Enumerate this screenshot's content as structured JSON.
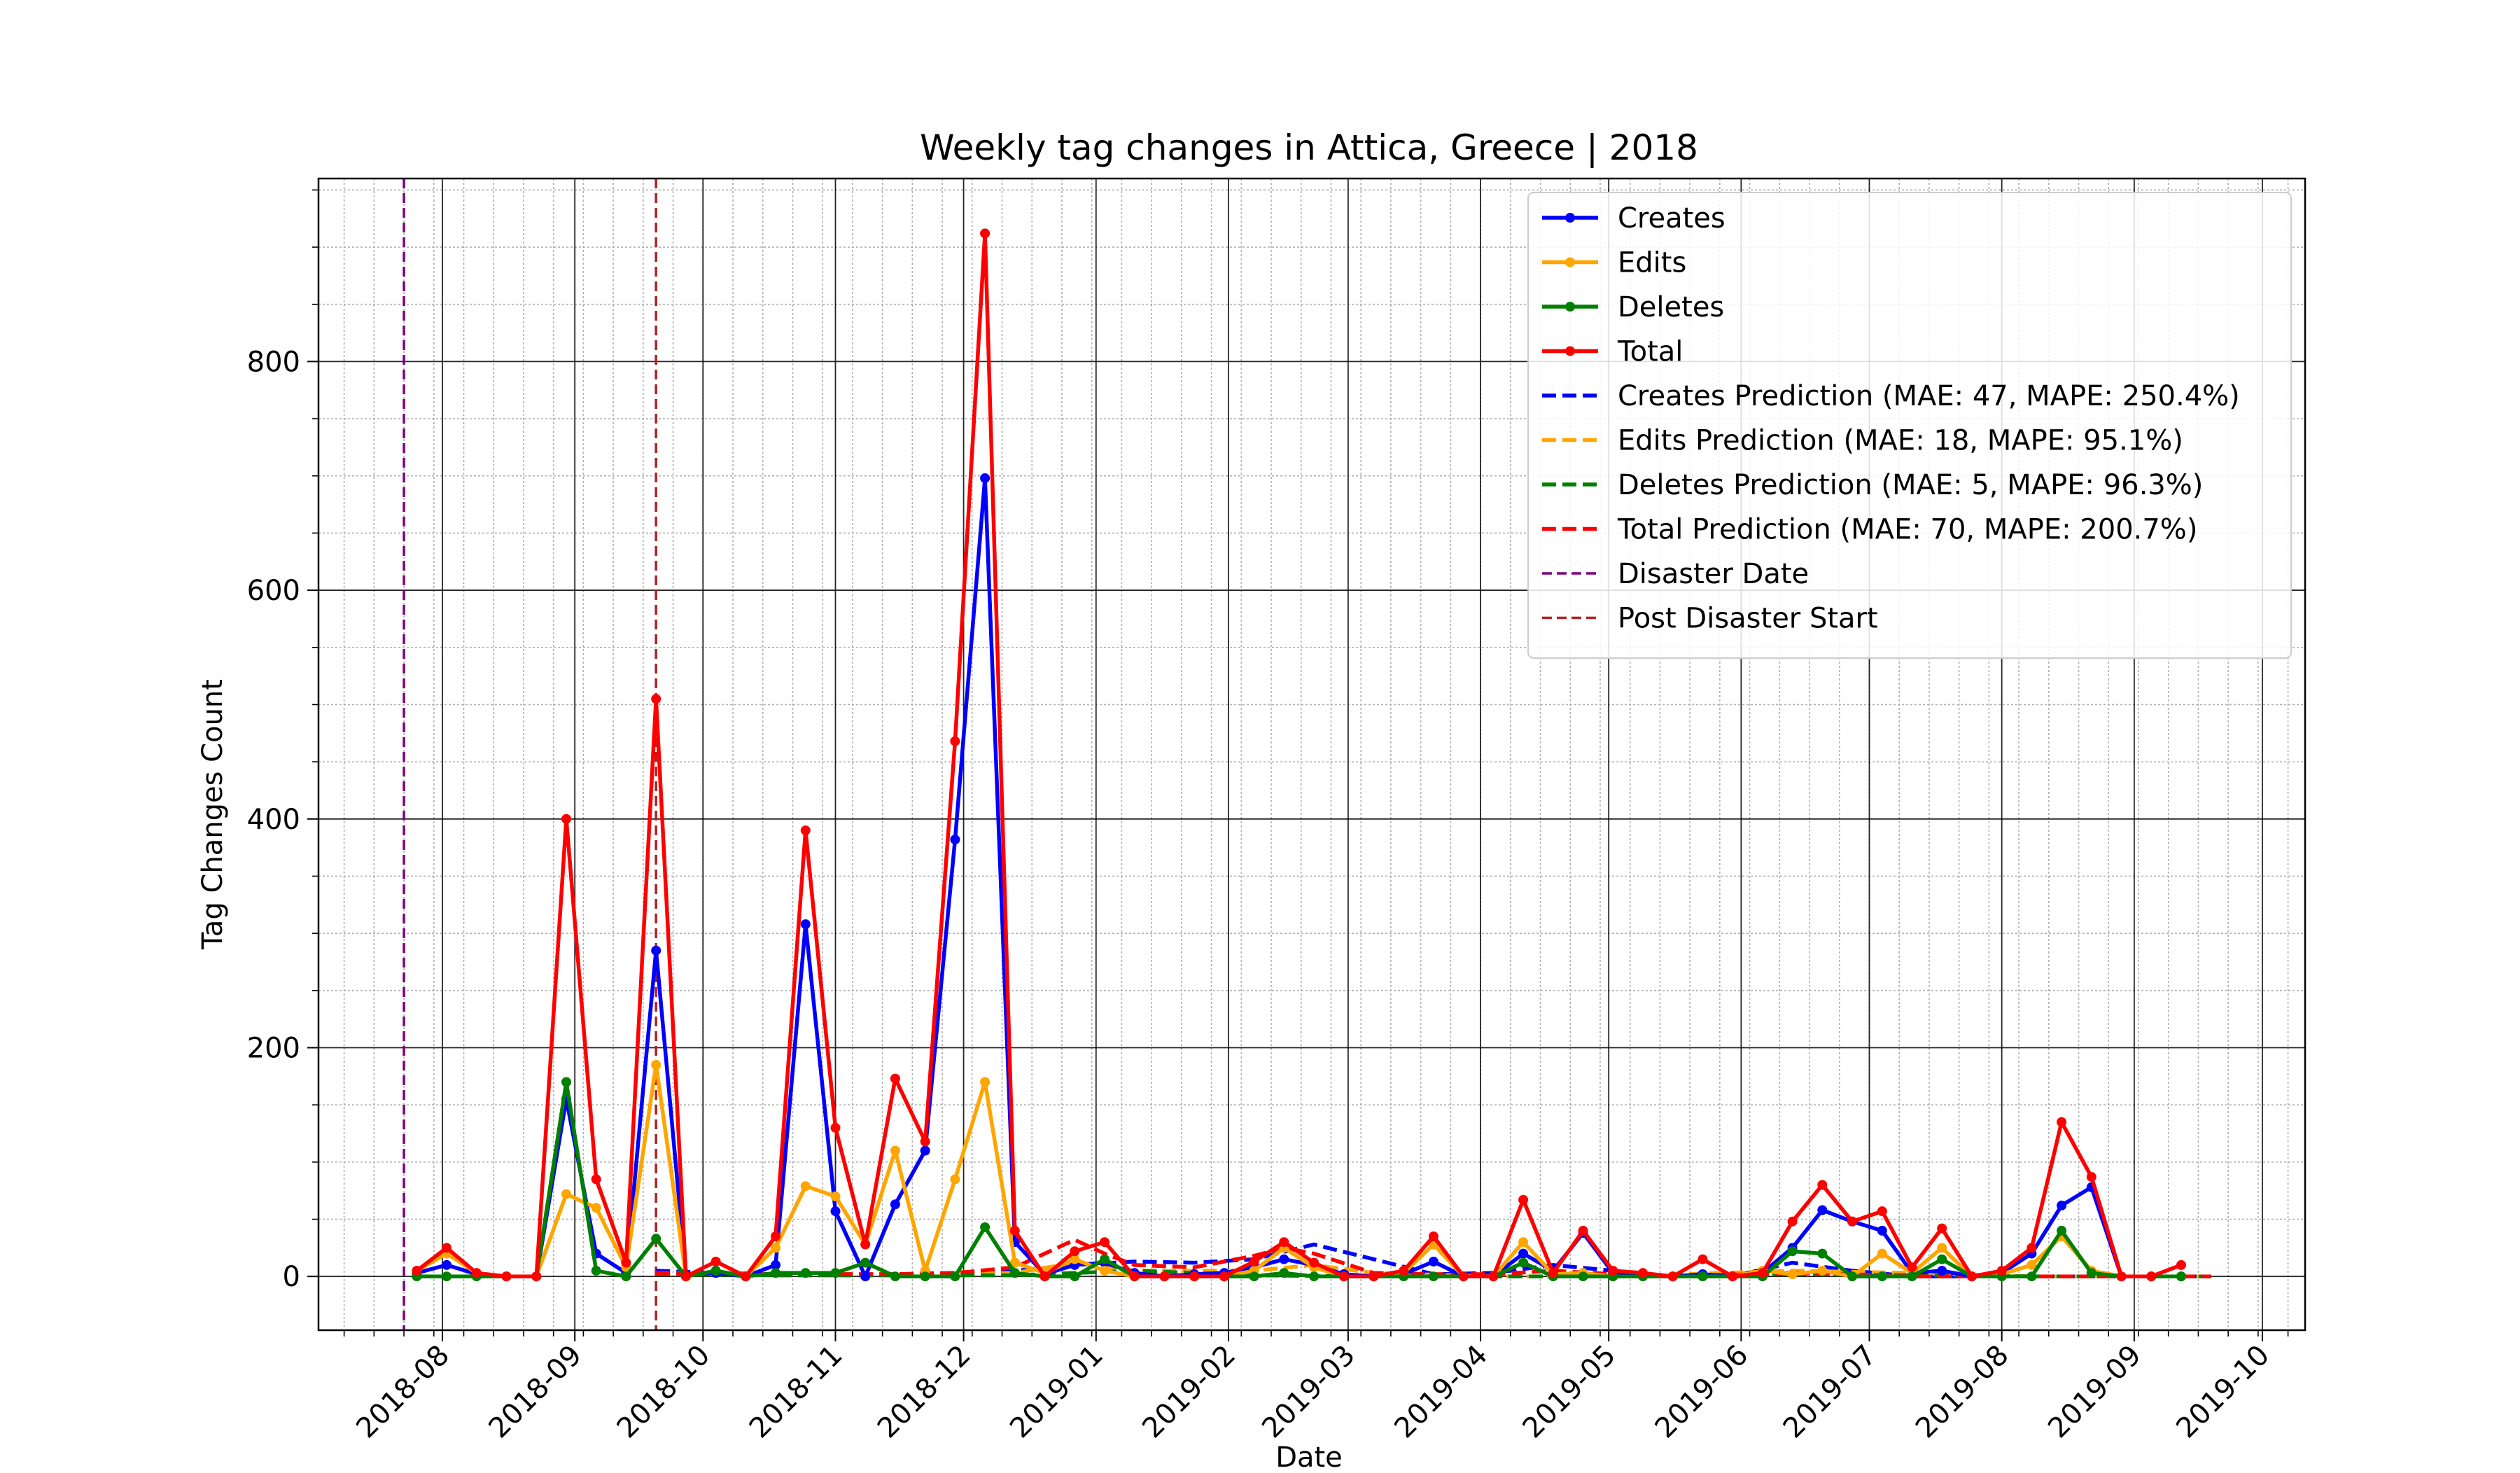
{
  "chart_data": {
    "type": "line",
    "title": "Weekly tag changes in Attica, Greece | 2018",
    "xlabel": "Date",
    "ylabel": "Tag Changes Count",
    "xlim": [
      "2018-07-03",
      "2019-10-11"
    ],
    "ylim": [
      -47,
      960
    ],
    "grid": true,
    "legend_position": "top-right",
    "x_ticks": [
      "2018-08",
      "2018-09",
      "2018-10",
      "2018-11",
      "2018-12",
      "2019-01",
      "2019-02",
      "2019-03",
      "2019-04",
      "2019-05",
      "2019-06",
      "2019-07",
      "2019-08",
      "2019-09",
      "2019-10"
    ],
    "y_ticks": [
      0,
      200,
      400,
      600,
      800
    ],
    "x": [
      "2018-07-26",
      "2018-08-02",
      "2018-08-09",
      "2018-08-16",
      "2018-08-23",
      "2018-08-30",
      "2018-09-06",
      "2018-09-13",
      "2018-09-20",
      "2018-09-27",
      "2018-10-04",
      "2018-10-11",
      "2018-10-18",
      "2018-10-25",
      "2018-11-01",
      "2018-11-08",
      "2018-11-15",
      "2018-11-22",
      "2018-11-29",
      "2018-12-06",
      "2018-12-13",
      "2018-12-20",
      "2018-12-27",
      "2019-01-03",
      "2019-01-10",
      "2019-01-17",
      "2019-01-24",
      "2019-01-31",
      "2019-02-07",
      "2019-02-14",
      "2019-02-21",
      "2019-02-28",
      "2019-03-07",
      "2019-03-14",
      "2019-03-21",
      "2019-03-28",
      "2019-04-04",
      "2019-04-11",
      "2019-04-18",
      "2019-04-25",
      "2019-05-02",
      "2019-05-09",
      "2019-05-16",
      "2019-05-23",
      "2019-05-30",
      "2019-06-06",
      "2019-06-13",
      "2019-06-20",
      "2019-06-27",
      "2019-07-04",
      "2019-07-11",
      "2019-07-18",
      "2019-07-25",
      "2019-08-01",
      "2019-08-08",
      "2019-08-15",
      "2019-08-22",
      "2019-08-29",
      "2019-09-05",
      "2019-09-12"
    ],
    "series": [
      {
        "name": "Creates",
        "style": "solid-marker",
        "color": "#0000ff",
        "values": [
          3,
          10,
          2,
          0,
          0,
          155,
          20,
          3,
          285,
          2,
          3,
          0,
          10,
          308,
          57,
          0,
          63,
          110,
          382,
          698,
          30,
          2,
          10,
          12,
          3,
          0,
          2,
          3,
          8,
          15,
          10,
          2,
          0,
          2,
          13,
          0,
          0,
          20,
          5,
          38,
          3,
          2,
          0,
          2,
          0,
          3,
          25,
          58,
          48,
          40,
          3,
          5,
          0,
          3,
          20,
          62,
          78,
          0,
          0,
          0
        ]
      },
      {
        "name": "Edits",
        "style": "solid-marker",
        "color": "#ffa500",
        "values": [
          5,
          20,
          3,
          0,
          0,
          72,
          60,
          8,
          185,
          0,
          5,
          0,
          25,
          79,
          70,
          28,
          110,
          5,
          85,
          170,
          12,
          3,
          15,
          5,
          0,
          0,
          0,
          0,
          5,
          25,
          8,
          0,
          0,
          3,
          28,
          0,
          0,
          30,
          2,
          3,
          0,
          0,
          0,
          0,
          0,
          5,
          2,
          5,
          0,
          20,
          3,
          25,
          0,
          2,
          10,
          35,
          5,
          0,
          0,
          0
        ]
      },
      {
        "name": "Deletes",
        "style": "solid-marker",
        "color": "#008000",
        "values": [
          0,
          0,
          0,
          0,
          0,
          170,
          5,
          0,
          33,
          0,
          5,
          0,
          3,
          3,
          3,
          12,
          0,
          0,
          0,
          43,
          3,
          0,
          0,
          15,
          0,
          0,
          0,
          0,
          0,
          3,
          0,
          0,
          0,
          0,
          0,
          0,
          0,
          12,
          0,
          0,
          0,
          0,
          0,
          0,
          0,
          0,
          22,
          20,
          0,
          0,
          0,
          15,
          0,
          0,
          0,
          40,
          3,
          0,
          0,
          0
        ]
      },
      {
        "name": "Total",
        "style": "solid-marker",
        "color": "#ff0000",
        "values": [
          5,
          25,
          3,
          0,
          0,
          400,
          85,
          12,
          505,
          0,
          13,
          0,
          35,
          390,
          130,
          28,
          173,
          118,
          468,
          912,
          40,
          0,
          22,
          30,
          0,
          0,
          0,
          0,
          13,
          30,
          12,
          0,
          0,
          5,
          35,
          0,
          0,
          67,
          3,
          40,
          5,
          3,
          0,
          15,
          0,
          3,
          48,
          80,
          48,
          57,
          8,
          42,
          0,
          5,
          25,
          135,
          87,
          0,
          0,
          10
        ]
      },
      {
        "name": "Creates Prediction (MAE: 47, MAPE: 250.4%)",
        "style": "dashed",
        "color": "#0000ff",
        "x": [
          "2018-09-20",
          "2018-10-04",
          "2018-10-18",
          "2018-11-01",
          "2018-11-15",
          "2018-11-29",
          "2018-12-13",
          "2018-12-27",
          "2019-01-10",
          "2019-01-24",
          "2019-02-07",
          "2019-02-21",
          "2019-03-07",
          "2019-03-21",
          "2019-04-04",
          "2019-04-18",
          "2019-05-02",
          "2019-05-16",
          "2019-05-30",
          "2019-06-13",
          "2019-06-27",
          "2019-07-11",
          "2019-07-25",
          "2019-08-08",
          "2019-08-22",
          "2019-09-05",
          "2019-09-19"
        ],
        "values": [
          5,
          3,
          2,
          2,
          2,
          3,
          5,
          10,
          13,
          12,
          15,
          28,
          15,
          2,
          3,
          10,
          5,
          0,
          0,
          12,
          5,
          0,
          0,
          0,
          0,
          0,
          0
        ]
      },
      {
        "name": "Edits Prediction (MAE: 18, MAPE: 95.1%)",
        "style": "dashed",
        "color": "#ffa500",
        "x": [
          "2018-09-20",
          "2018-10-18",
          "2018-11-15",
          "2018-12-13",
          "2018-12-27",
          "2019-01-10",
          "2019-02-07",
          "2019-02-21",
          "2019-03-07",
          "2019-04-04",
          "2019-05-02",
          "2019-06-13",
          "2019-07-11",
          "2019-08-08",
          "2019-09-19"
        ],
        "values": [
          3,
          2,
          2,
          3,
          12,
          5,
          5,
          10,
          3,
          0,
          0,
          5,
          3,
          0,
          0
        ]
      },
      {
        "name": "Deletes Prediction (MAE: 5, MAPE: 96.3%)",
        "style": "dashed",
        "color": "#008000",
        "x": [
          "2018-09-20",
          "2018-10-18",
          "2018-11-15",
          "2018-12-13",
          "2019-01-10",
          "2019-02-07",
          "2019-03-07",
          "2019-04-04",
          "2019-05-02",
          "2019-06-13",
          "2019-07-11",
          "2019-08-08",
          "2019-09-19"
        ],
        "values": [
          2,
          1,
          1,
          1,
          5,
          1,
          0,
          0,
          0,
          2,
          1,
          0,
          0
        ]
      },
      {
        "name": "Total Prediction (MAE: 70, MAPE: 200.7%)",
        "style": "dashed",
        "color": "#ff0000",
        "x": [
          "2018-09-20",
          "2018-10-04",
          "2018-10-18",
          "2018-11-01",
          "2018-11-15",
          "2018-11-29",
          "2018-12-13",
          "2018-12-20",
          "2018-12-27",
          "2019-01-03",
          "2019-01-10",
          "2019-01-24",
          "2019-02-07",
          "2019-02-14",
          "2019-02-21",
          "2019-03-07",
          "2019-03-21",
          "2019-04-04",
          "2019-04-18",
          "2019-05-02",
          "2019-05-16",
          "2019-06-13",
          "2019-06-27",
          "2019-07-11",
          "2019-07-25",
          "2019-08-08",
          "2019-08-22",
          "2019-09-05",
          "2019-09-19"
        ],
        "values": [
          3,
          2,
          2,
          2,
          2,
          3,
          8,
          20,
          32,
          20,
          10,
          8,
          18,
          25,
          20,
          3,
          2,
          2,
          5,
          2,
          0,
          3,
          2,
          0,
          0,
          0,
          0,
          0,
          0
        ]
      }
    ],
    "vertical_lines": [
      {
        "name": "Disaster Date",
        "x": "2018-07-23",
        "color": "#800080"
      },
      {
        "name": "Post Disaster Start",
        "x": "2018-09-20",
        "color": "#b22222"
      }
    ]
  }
}
